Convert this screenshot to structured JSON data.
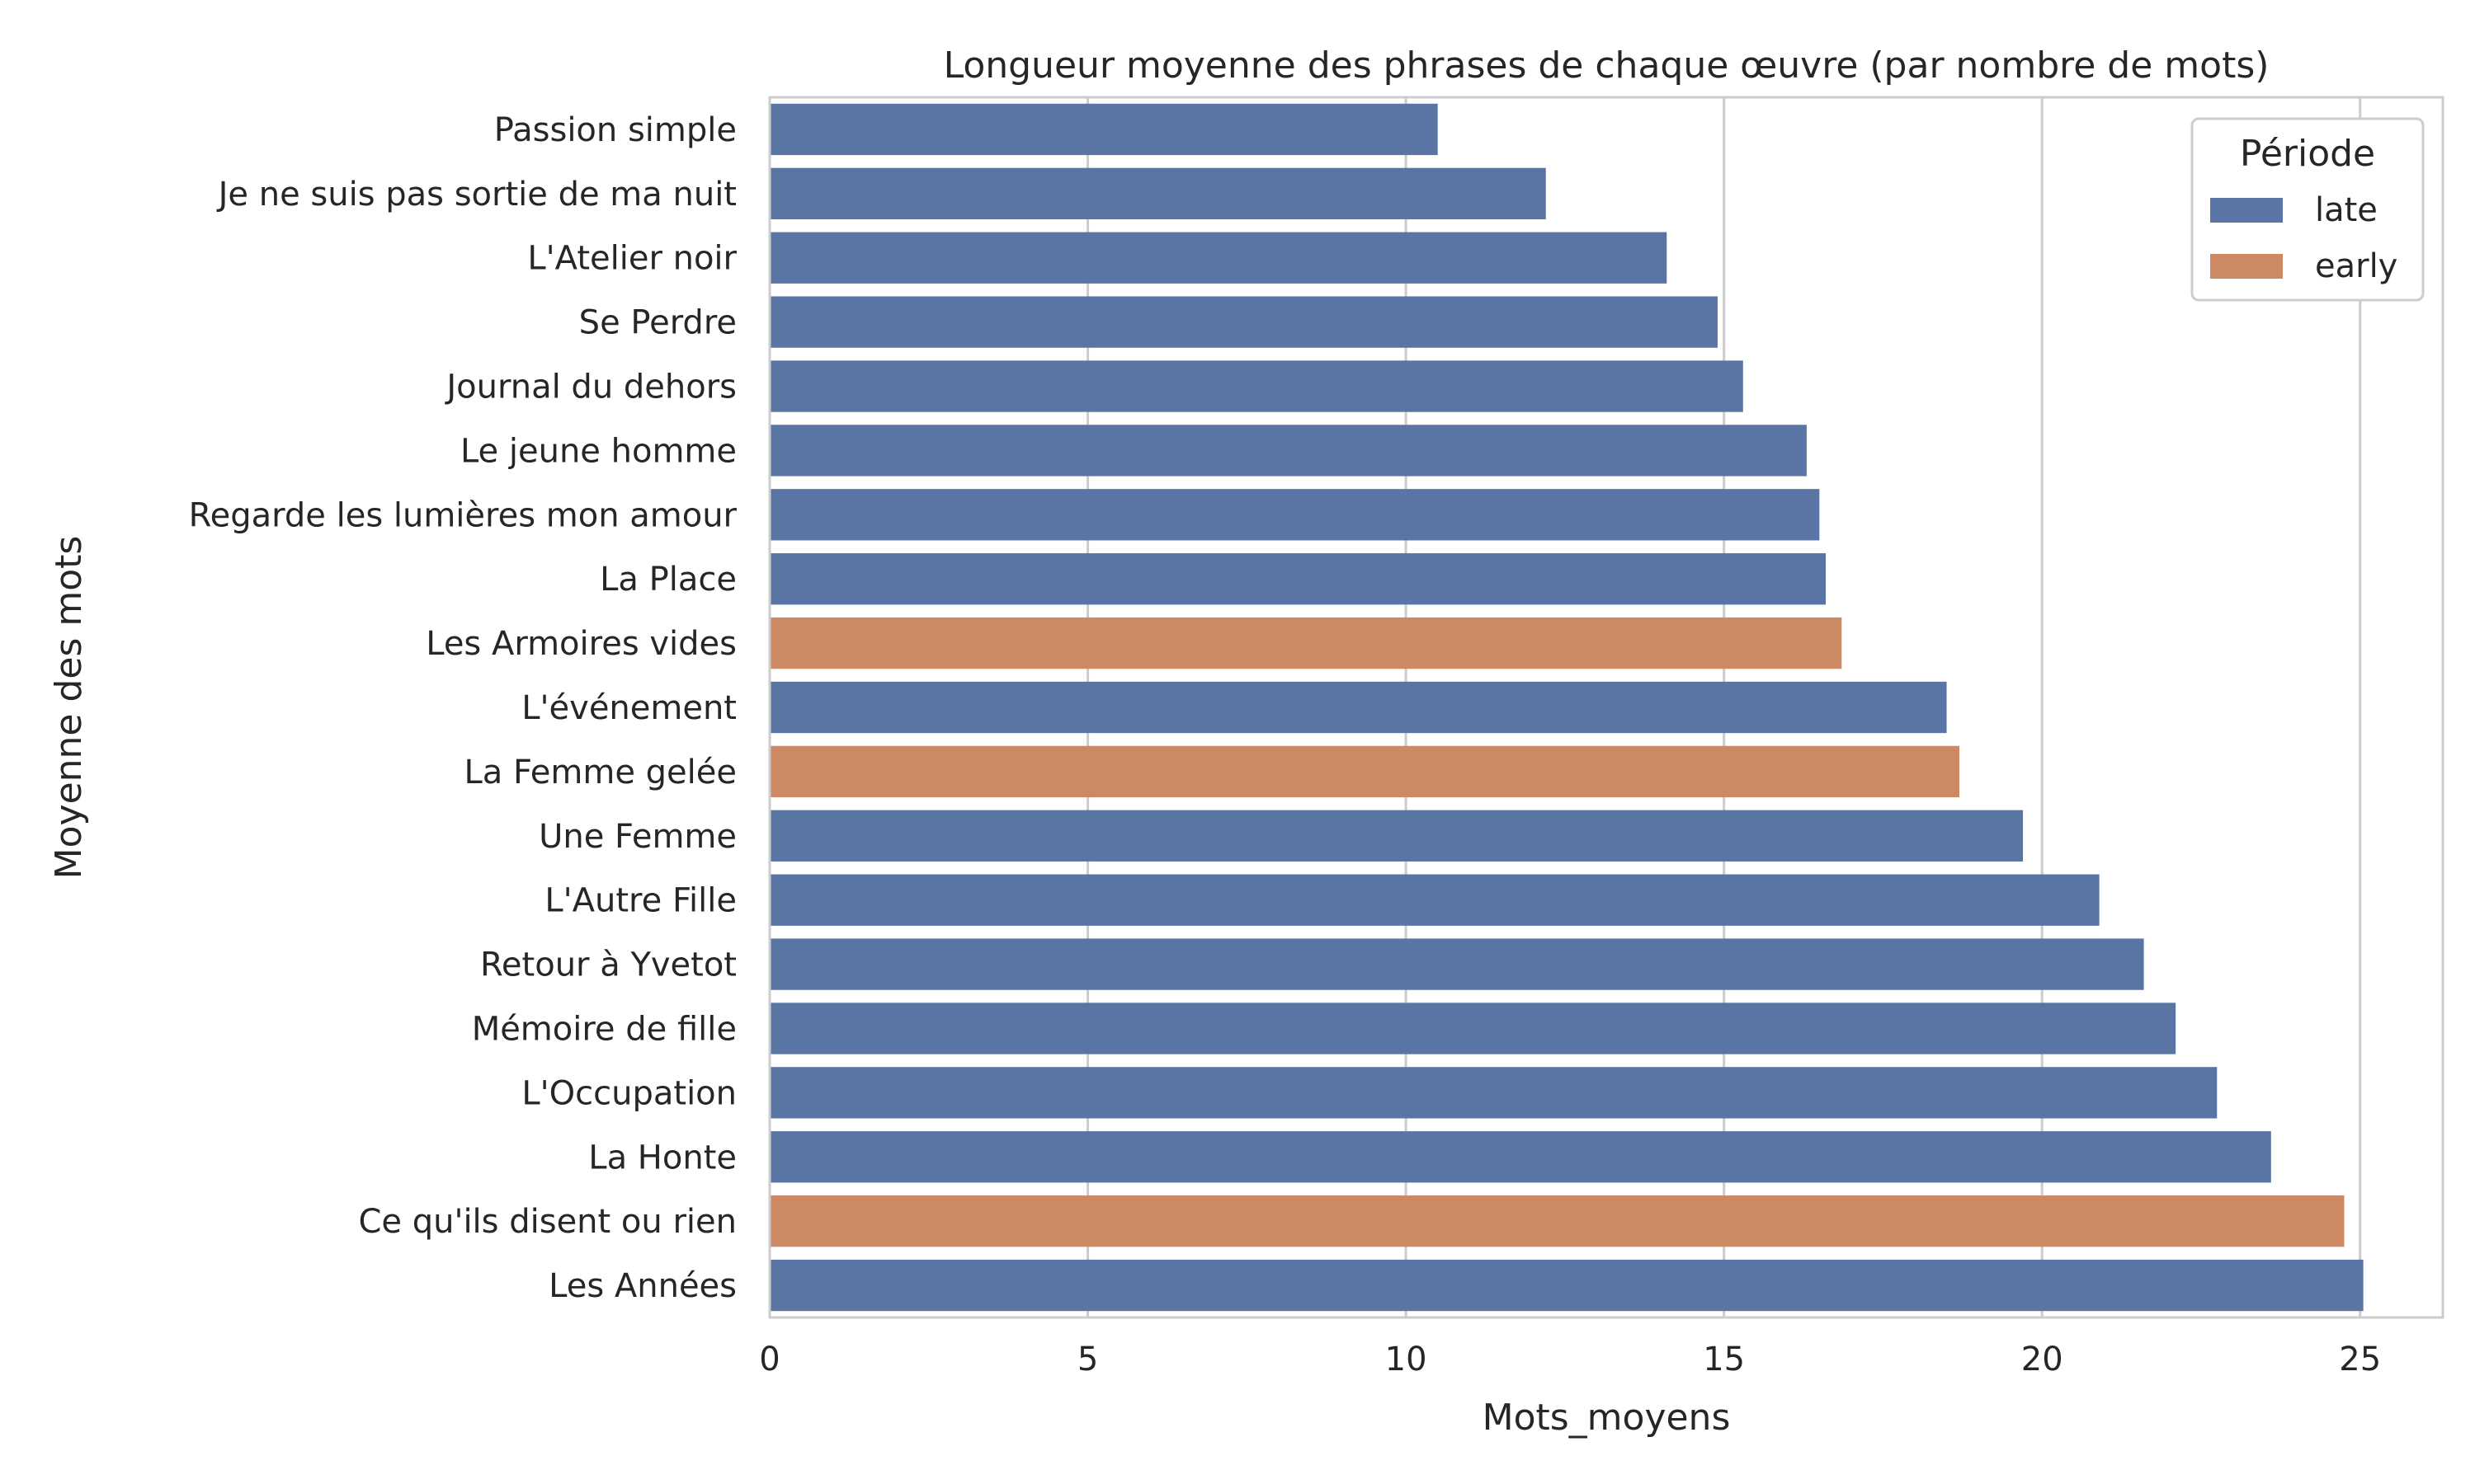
{
  "chart_data": {
    "type": "bar",
    "orientation": "horizontal",
    "title": "Longueur moyenne des phrases de chaque œuvre (par nombre de mots)",
    "xlabel": "Mots_moyens",
    "ylabel": "Moyenne des mots",
    "xlim": [
      0,
      26.3
    ],
    "xticks": [
      0,
      5,
      10,
      15,
      20,
      25
    ],
    "grid": "vertical",
    "legend": {
      "title": "Période",
      "position": "top-right",
      "entries": [
        {
          "label": "late",
          "color": "#5975a4"
        },
        {
          "label": "early",
          "color": "#cc8963"
        }
      ]
    },
    "categories": [
      "Passion simple",
      "Je ne suis pas sortie de ma nuit",
      "L'Atelier noir",
      "Se Perdre",
      "Journal du dehors",
      "Le jeune homme",
      "Regarde les lumières mon amour",
      "La Place",
      "Les Armoires vides",
      "L'événement",
      "La Femme gelée",
      "Une Femme",
      "L'Autre Fille",
      "Retour à Yvetot",
      "Mémoire de fille",
      "L'Occupation",
      "La Honte",
      "Ce qu'ils disent ou rien",
      "Les Années"
    ],
    "values": [
      10.5,
      12.2,
      14.1,
      14.9,
      15.3,
      16.3,
      16.5,
      16.6,
      16.85,
      18.5,
      18.7,
      19.7,
      20.9,
      21.6,
      22.1,
      22.75,
      23.6,
      24.75,
      25.05
    ],
    "groups": [
      "late",
      "late",
      "late",
      "late",
      "late",
      "late",
      "late",
      "late",
      "early",
      "late",
      "early",
      "late",
      "late",
      "late",
      "late",
      "late",
      "late",
      "early",
      "late"
    ]
  }
}
